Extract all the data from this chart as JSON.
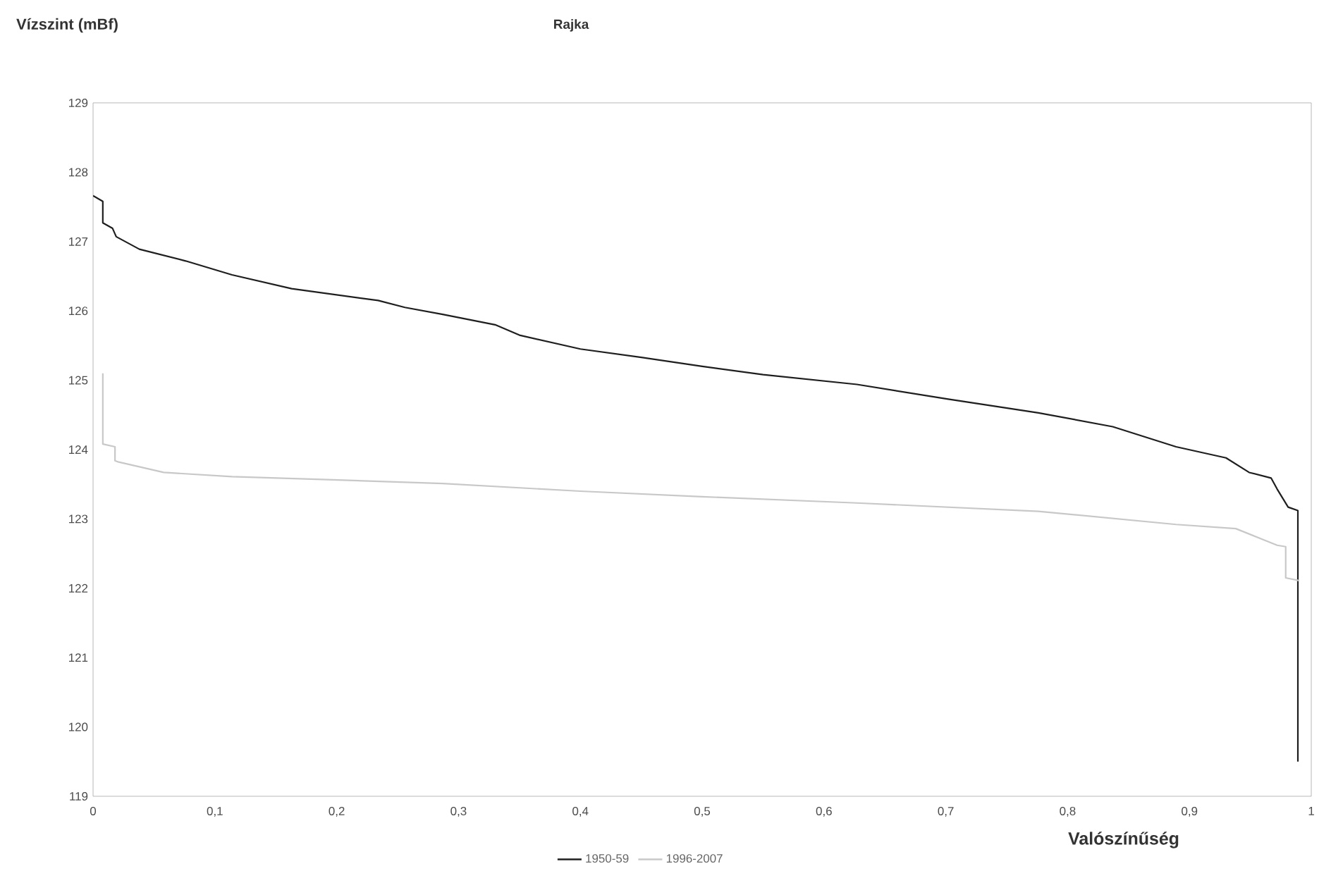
{
  "chart_data": {
    "type": "line",
    "title": "Rajka",
    "ylabel": "Vízszint (mBf)",
    "xlabel": "Valószínűség",
    "xlim": [
      0,
      1
    ],
    "ylim": [
      119,
      129
    ],
    "xticks": [
      0,
      {
        "value": 0.1,
        "label": "0,1"
      },
      {
        "value": 0.2,
        "label": "0,2"
      },
      {
        "value": 0.3,
        "label": "0,3"
      },
      {
        "value": 0.4,
        "label": "0,4"
      },
      {
        "value": 0.5,
        "label": "0,5"
      },
      {
        "value": 0.6,
        "label": "0,6"
      },
      {
        "value": 0.7,
        "label": "0,7"
      },
      {
        "value": 0.8,
        "label": "0,8"
      },
      {
        "value": 0.9,
        "label": "0,9"
      },
      1
    ],
    "yticks": [
      119,
      120,
      121,
      122,
      123,
      124,
      125,
      126,
      127,
      128,
      129
    ],
    "legend": "bottom",
    "grid": false,
    "series": [
      {
        "name": "1950-59",
        "color": "#1e1e1e",
        "x": [
          0,
          0.008,
          0.008,
          0.016,
          0.019,
          0.038,
          0.076,
          0.114,
          0.163,
          0.234,
          0.256,
          0.287,
          0.33,
          0.35,
          0.4,
          0.45,
          0.5,
          0.55,
          0.627,
          0.701,
          0.776,
          0.837,
          0.889,
          0.93,
          0.949,
          0.967,
          0.972,
          0.981,
          0.989,
          0.989
        ],
        "values": [
          127.66,
          127.58,
          127.27,
          127.19,
          127.07,
          126.89,
          126.72,
          126.52,
          126.32,
          126.15,
          126.05,
          125.95,
          125.8,
          125.65,
          125.45,
          125.33,
          125.2,
          125.08,
          124.94,
          124.73,
          124.53,
          124.33,
          124.04,
          123.88,
          123.67,
          123.59,
          123.43,
          123.17,
          123.12,
          119.5
        ]
      },
      {
        "name": "1996-2007",
        "color": "#c8c8c8",
        "x": [
          0.008,
          0.008,
          0.018,
          0.018,
          0.021,
          0.058,
          0.114,
          0.188,
          0.287,
          0.4,
          0.5,
          0.627,
          0.776,
          0.889,
          0.938,
          0.972,
          0.979,
          0.979,
          0.99
        ],
        "values": [
          125.1,
          124.08,
          124.04,
          123.84,
          123.82,
          123.67,
          123.61,
          123.57,
          123.51,
          123.4,
          123.32,
          123.23,
          123.11,
          122.92,
          122.86,
          122.62,
          122.6,
          122.15,
          122.11
        ]
      }
    ]
  }
}
